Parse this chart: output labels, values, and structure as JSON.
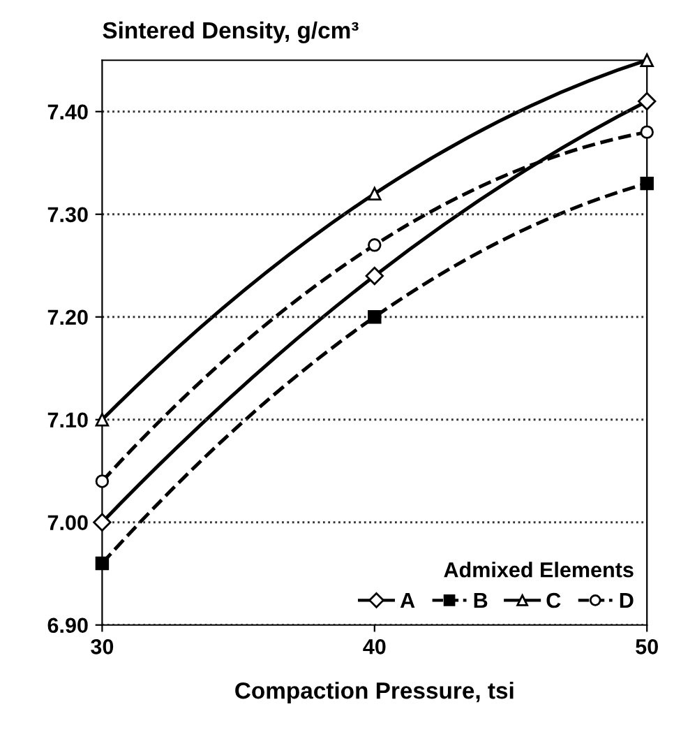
{
  "chart_data": {
    "type": "line",
    "ylabel": "Sintered Density, g/cm³",
    "xlabel": "Compaction Pressure, tsi",
    "legend_title": "Admixed Elements",
    "x": [
      30,
      40,
      50
    ],
    "series": [
      {
        "name": "A",
        "color": "#000000",
        "values": [
          7.0,
          7.24,
          7.41
        ],
        "marker": "diamond",
        "line_style": "solid"
      },
      {
        "name": "B",
        "color": "#000000",
        "values": [
          6.96,
          7.2,
          7.33
        ],
        "marker": "square",
        "line_style": "dashed"
      },
      {
        "name": "C",
        "color": "#000000",
        "values": [
          7.1,
          7.32,
          7.45
        ],
        "marker": "triangle",
        "line_style": "solid"
      },
      {
        "name": "D",
        "color": "#000000",
        "values": [
          7.04,
          7.27,
          7.38
        ],
        "marker": "circle",
        "line_style": "dashed"
      }
    ],
    "xlim": [
      30,
      50
    ],
    "xticks": [
      30,
      40,
      50
    ],
    "ylim": [
      6.9,
      7.45
    ],
    "yticks": [
      {
        "value": 6.9,
        "label": "6.90"
      },
      {
        "value": 7.0,
        "label": "7.00"
      },
      {
        "value": 7.1,
        "label": "7.10"
      },
      {
        "value": 7.2,
        "label": "7.20"
      },
      {
        "value": 7.3,
        "label": "7.30"
      },
      {
        "value": 7.4,
        "label": "7.40"
      }
    ],
    "grid": "y",
    "legend": "bottom right"
  }
}
